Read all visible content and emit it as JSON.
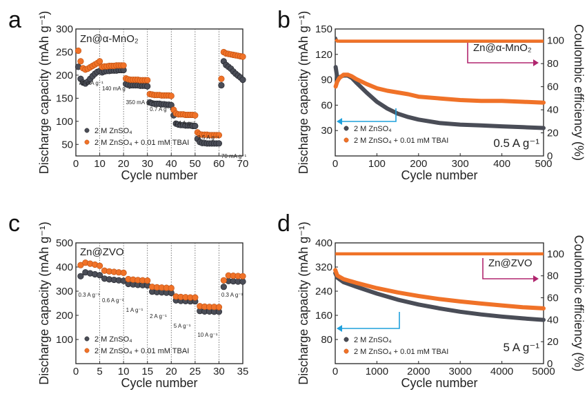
{
  "colors": {
    "series_base": "#4a4d57",
    "series_tbai": "#f07228",
    "arrow_blue": "#1fa0dc",
    "arrow_magenta": "#b0256e"
  },
  "legend": {
    "base": "2 M ZnSO₄",
    "tbai": "2 M ZnSO₄ + 0.01 mM TBAI"
  },
  "chart_data": [
    {
      "panel": "a",
      "type": "scatter",
      "film_label": "Zn@α-MnO₂",
      "xlabel": "Cycle number",
      "ylabel": "Discharge capacity (mAh g⁻¹)",
      "xlim": [
        0,
        70
      ],
      "ylim": [
        25,
        300
      ],
      "xticks": [
        0,
        10,
        20,
        30,
        40,
        50,
        60,
        70
      ],
      "yticks": [
        50,
        100,
        150,
        200,
        250,
        300
      ],
      "separators": [
        10,
        20,
        30,
        40,
        50,
        60
      ],
      "rate_labels": [
        "70 mA g⁻¹",
        "140 mA g⁻¹",
        "350 mA g⁻¹",
        "0.7 A g⁻¹",
        "1.4 A g⁻¹",
        "3.5 A g⁻¹",
        "70 mA g⁻¹"
      ],
      "series": [
        {
          "name": "2 M ZnSO₄",
          "x": [
            1,
            2,
            3,
            4,
            5,
            6,
            7,
            8,
            9,
            10,
            11,
            12,
            13,
            14,
            15,
            16,
            17,
            18,
            19,
            20,
            21,
            22,
            23,
            24,
            25,
            26,
            27,
            28,
            29,
            30,
            31,
            32,
            33,
            34,
            35,
            36,
            37,
            38,
            39,
            40,
            41,
            42,
            43,
            44,
            45,
            46,
            47,
            48,
            49,
            50,
            51,
            52,
            53,
            54,
            55,
            56,
            57,
            58,
            59,
            60,
            61,
            62,
            63,
            64,
            65,
            66,
            67,
            68,
            69,
            70
          ],
          "y": [
            218,
            192,
            184,
            182,
            186,
            192,
            198,
            203,
            207,
            209,
            206,
            208,
            209,
            209,
            210,
            210,
            210,
            211,
            211,
            211,
            181,
            179,
            178,
            178,
            178,
            178,
            177,
            177,
            177,
            176,
            141,
            139,
            138,
            138,
            138,
            137,
            137,
            136,
            136,
            135,
            113,
            95,
            93,
            92,
            92,
            91,
            91,
            91,
            90,
            90,
            62,
            55,
            53,
            53,
            52,
            52,
            52,
            52,
            52,
            52,
            178,
            230,
            222,
            218,
            214,
            208,
            203,
            199,
            195,
            190
          ]
        },
        {
          "name": "2 M ZnSO₄ + 0.01 mM TBAI",
          "x": [
            1,
            2,
            3,
            4,
            5,
            6,
            7,
            8,
            9,
            10,
            11,
            12,
            13,
            14,
            15,
            16,
            17,
            18,
            19,
            20,
            21,
            22,
            23,
            24,
            25,
            26,
            27,
            28,
            29,
            30,
            31,
            32,
            33,
            34,
            35,
            36,
            37,
            38,
            39,
            40,
            41,
            42,
            43,
            44,
            45,
            46,
            47,
            48,
            49,
            50,
            51,
            52,
            53,
            54,
            55,
            56,
            57,
            58,
            59,
            60,
            61,
            62,
            63,
            64,
            65,
            66,
            67,
            68,
            69,
            70
          ],
          "y": [
            253,
            230,
            215,
            212,
            214,
            217,
            220,
            223,
            226,
            230,
            218,
            219,
            219,
            220,
            220,
            220,
            221,
            221,
            221,
            221,
            193,
            191,
            190,
            190,
            190,
            190,
            189,
            189,
            189,
            189,
            159,
            158,
            157,
            157,
            157,
            156,
            156,
            156,
            156,
            155,
            125,
            117,
            115,
            115,
            115,
            114,
            114,
            114,
            114,
            113,
            76,
            72,
            71,
            71,
            71,
            70,
            70,
            70,
            70,
            70,
            192,
            250,
            247,
            246,
            245,
            244,
            243,
            242,
            241,
            240
          ]
        }
      ]
    },
    {
      "panel": "b",
      "type": "line",
      "film_label": "Zn@α-MnO₂",
      "rate_label": "0.5 A g⁻¹",
      "xlabel": "Cycle number",
      "ylabel": "Discharge capacity (mAh g⁻¹)",
      "ylabel_right": "Coulombic efficiency (%)",
      "xlim": [
        0,
        500
      ],
      "ylim": [
        0,
        150
      ],
      "ylim_right": [
        0,
        110
      ],
      "xticks": [
        0,
        100,
        200,
        300,
        400,
        500
      ],
      "yticks": [
        30,
        60,
        90,
        120,
        150
      ],
      "yticks_right": [
        0,
        20,
        40,
        60,
        80,
        100
      ],
      "series": [
        {
          "name": "2 M ZnSO₄",
          "x": [
            1,
            5,
            10,
            20,
            30,
            40,
            50,
            75,
            100,
            125,
            150,
            175,
            200,
            250,
            300,
            350,
            400,
            450,
            500
          ],
          "y": [
            105,
            92,
            93,
            95,
            95,
            92,
            87,
            75,
            64,
            56,
            50,
            46,
            43,
            39,
            37,
            36,
            35,
            34,
            33
          ]
        },
        {
          "name": "2 M ZnSO₄ + 0.01 mM TBAI",
          "x": [
            1,
            5,
            10,
            20,
            30,
            40,
            50,
            75,
            100,
            125,
            150,
            175,
            200,
            250,
            300,
            350,
            400,
            450,
            500
          ],
          "y": [
            82,
            88,
            92,
            96,
            96,
            94,
            91,
            85,
            80,
            77,
            75,
            73,
            70,
            68,
            66,
            65,
            65,
            64,
            63
          ]
        },
        {
          "name": "CE 2 M ZnSO₄",
          "x": [
            1,
            5,
            10,
            50,
            100,
            200,
            300,
            400,
            500
          ],
          "y": [
            103,
            100,
            99,
            99,
            99,
            99,
            99,
            99,
            99
          ]
        },
        {
          "name": "CE 2 M ZnSO₄ + 0.01 mM TBAI",
          "x": [
            1,
            5,
            10,
            50,
            100,
            200,
            300,
            400,
            500
          ],
          "y": [
            101,
            99.5,
            99.5,
            99.5,
            99.5,
            99.5,
            99.5,
            99.5,
            99.5
          ]
        }
      ]
    },
    {
      "panel": "c",
      "type": "scatter",
      "film_label": "Zn@ZVO",
      "xlabel": "Cycle number",
      "ylabel": "Discharge capacity (mAh g⁻¹)",
      "xlim": [
        0,
        35
      ],
      "ylim": [
        0,
        500
      ],
      "xticks": [
        0,
        5,
        10,
        15,
        20,
        25,
        30,
        35
      ],
      "yticks": [
        100,
        200,
        300,
        400,
        500
      ],
      "separators": [
        5,
        10,
        15,
        20,
        25,
        30
      ],
      "rate_labels": [
        "0.3 A g⁻¹",
        "0.6 A g⁻¹",
        "1 A g⁻¹",
        "2 A g⁻¹",
        "5 A g⁻¹",
        "10 A g⁻¹",
        "0.3 A g⁻¹"
      ],
      "series": [
        {
          "name": "2 M ZnSO₄",
          "x": [
            1,
            2,
            3,
            4,
            5,
            6,
            7,
            8,
            9,
            10,
            11,
            12,
            13,
            14,
            15,
            16,
            17,
            18,
            19,
            20,
            21,
            22,
            23,
            24,
            25,
            26,
            27,
            28,
            29,
            30,
            31,
            32,
            33,
            34,
            35
          ],
          "y": [
            362,
            378,
            374,
            370,
            366,
            352,
            349,
            347,
            345,
            343,
            330,
            328,
            326,
            325,
            324,
            298,
            296,
            295,
            294,
            293,
            262,
            260,
            259,
            258,
            258,
            218,
            216,
            216,
            215,
            215,
            318,
            342,
            341,
            340,
            340
          ]
        },
        {
          "name": "2 M ZnSO₄ + 0.01 mM TBAI",
          "x": [
            1,
            2,
            3,
            4,
            5,
            6,
            7,
            8,
            9,
            10,
            11,
            12,
            13,
            14,
            15,
            16,
            17,
            18,
            19,
            20,
            21,
            22,
            23,
            24,
            25,
            26,
            27,
            28,
            29,
            30,
            31,
            32,
            33,
            34,
            35
          ],
          "y": [
            408,
            418,
            414,
            410,
            405,
            385,
            382,
            380,
            378,
            376,
            350,
            348,
            346,
            345,
            344,
            318,
            316,
            315,
            314,
            313,
            278,
            276,
            275,
            274,
            274,
            238,
            236,
            235,
            235,
            234,
            345,
            365,
            364,
            363,
            362
          ]
        }
      ]
    },
    {
      "panel": "d",
      "type": "line",
      "film_label": "Zn@ZVO",
      "rate_label": "5 A g⁻¹",
      "xlabel": "Cycle number",
      "ylabel": "Discharge capacity (mAh g⁻¹)",
      "ylabel_right": "Coulombic efficiency (%)",
      "xlim": [
        0,
        5000
      ],
      "ylim": [
        0,
        400
      ],
      "ylim_right": [
        0,
        110
      ],
      "xticks": [
        0,
        1000,
        2000,
        3000,
        4000,
        5000
      ],
      "yticks": [
        80,
        160,
        240,
        320,
        400
      ],
      "yticks_right": [
        0,
        20,
        40,
        60,
        80,
        100
      ],
      "series": [
        {
          "name": "2 M ZnSO₄",
          "x": [
            1,
            50,
            200,
            500,
            1000,
            1500,
            2000,
            2500,
            3000,
            3500,
            4000,
            4500,
            5000
          ],
          "y": [
            300,
            285,
            270,
            255,
            232,
            212,
            196,
            183,
            172,
            163,
            156,
            150,
            145
          ]
        },
        {
          "name": "2 M ZnSO₄ + 0.01 mM TBAI",
          "x": [
            1,
            50,
            200,
            500,
            1000,
            1500,
            2000,
            2500,
            3000,
            3500,
            4000,
            4500,
            5000
          ],
          "y": [
            310,
            292,
            280,
            268,
            250,
            236,
            224,
            214,
            206,
            199,
            193,
            187,
            183
          ]
        },
        {
          "name": "CE 2 M ZnSO₄",
          "x": [
            1,
            100,
            1000,
            2000,
            3000,
            4000,
            5000
          ],
          "y": [
            100,
            100,
            100,
            100,
            100,
            100,
            100
          ]
        },
        {
          "name": "CE 2 M ZnSO₄ + 0.01 mM TBAI",
          "x": [
            1,
            100,
            1000,
            2000,
            3000,
            4000,
            5000
          ],
          "y": [
            100,
            100,
            100,
            100,
            100,
            100,
            100
          ]
        }
      ]
    }
  ]
}
